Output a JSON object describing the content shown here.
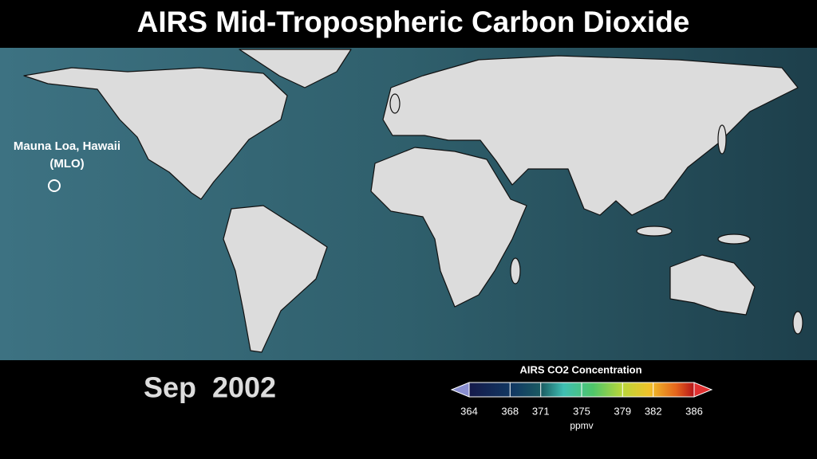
{
  "title": "AIRS Mid-Tropospheric Carbon Dioxide",
  "annotation": {
    "lines": [
      "Mauna Loa, Hawaii",
      "(MLO)"
    ]
  },
  "date": "Sep  2002",
  "colorbar": {
    "title": "AIRS CO2 Concentration",
    "range": [
      364,
      386
    ],
    "ticks": [
      364,
      368,
      371,
      375,
      379,
      382,
      386
    ],
    "unit": "ppmv"
  }
}
